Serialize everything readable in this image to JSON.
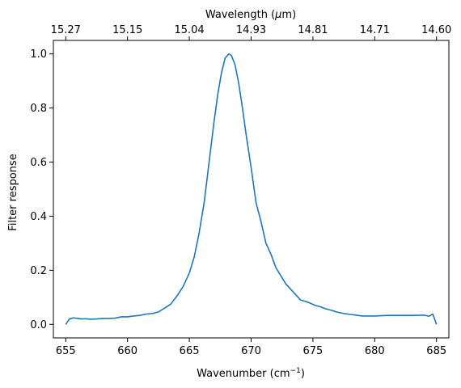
{
  "chart_data": {
    "type": "line",
    "title": "",
    "xlabel": "Wavenumber (cm",
    "xlabel_sup": "−1",
    "xlabel_close": ")",
    "ylabel": "Filter response",
    "top_xlabel_prefix": "Wavelength (",
    "top_xlabel_mu": "μ",
    "top_xlabel_suffix": "m)",
    "xlim": [
      654,
      686
    ],
    "ylim": [
      -0.05,
      1.05
    ],
    "grid": false,
    "legend": "none",
    "line_color": "#1f77b4",
    "x_ticks": [
      655,
      660,
      665,
      670,
      675,
      680,
      685
    ],
    "x_tick_labels": [
      "655",
      "660",
      "665",
      "670",
      "675",
      "680",
      "685"
    ],
    "y_ticks": [
      0.0,
      0.2,
      0.4,
      0.6,
      0.8,
      1.0
    ],
    "y_tick_labels": [
      "0.0",
      "0.2",
      "0.4",
      "0.6",
      "0.8",
      "1.0"
    ],
    "top_ticks_at_wavenumber": [
      655,
      660,
      665,
      670,
      675,
      680,
      685
    ],
    "top_tick_labels": [
      "15.27",
      "15.15",
      "15.04",
      "14.93",
      "14.81",
      "14.71",
      "14.60"
    ],
    "series": [
      {
        "x": [
          655.0,
          655.3,
          655.6,
          656.0,
          656.3,
          656.6,
          657.0,
          657.5,
          658.0,
          658.5,
          659.0,
          659.5,
          660.0,
          660.5,
          661.0,
          661.5,
          662.0,
          662.5,
          663.0,
          663.5,
          664.0,
          664.5,
          665.0,
          665.4,
          665.8,
          666.2,
          666.6,
          667.0,
          667.3,
          667.6,
          667.9,
          668.2,
          668.4,
          668.7,
          669.0,
          669.3,
          669.6,
          670.0,
          670.4,
          670.8,
          671.2,
          671.6,
          672.0,
          672.4,
          672.8,
          673.2,
          673.6,
          674.0,
          674.4,
          674.8,
          675.2,
          675.6,
          676.0,
          676.5,
          677.0,
          677.5,
          678.0,
          678.5,
          679.0,
          679.5,
          680.0,
          680.5,
          681.0,
          682.0,
          683.0,
          684.0,
          684.4,
          684.7,
          685.0
        ],
        "y": [
          0.0,
          0.02,
          0.024,
          0.022,
          0.02,
          0.021,
          0.019,
          0.02,
          0.022,
          0.022,
          0.023,
          0.028,
          0.028,
          0.031,
          0.033,
          0.038,
          0.04,
          0.046,
          0.06,
          0.075,
          0.105,
          0.14,
          0.19,
          0.25,
          0.34,
          0.45,
          0.6,
          0.75,
          0.85,
          0.93,
          0.985,
          1.0,
          0.995,
          0.96,
          0.89,
          0.8,
          0.7,
          0.58,
          0.45,
          0.38,
          0.3,
          0.26,
          0.21,
          0.18,
          0.15,
          0.13,
          0.11,
          0.09,
          0.085,
          0.078,
          0.07,
          0.065,
          0.058,
          0.052,
          0.045,
          0.04,
          0.037,
          0.034,
          0.031,
          0.031,
          0.031,
          0.032,
          0.033,
          0.033,
          0.033,
          0.034,
          0.03,
          0.038,
          0.0
        ]
      }
    ]
  }
}
